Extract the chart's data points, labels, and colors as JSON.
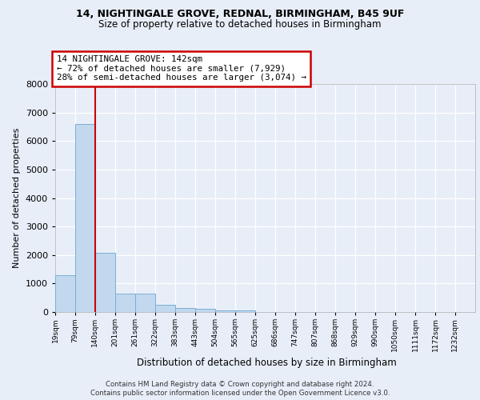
{
  "title1": "14, NIGHTINGALE GROVE, REDNAL, BIRMINGHAM, B45 9UF",
  "title2": "Size of property relative to detached houses in Birmingham",
  "xlabel": "Distribution of detached houses by size in Birmingham",
  "ylabel": "Number of detached properties",
  "footnote1": "Contains HM Land Registry data © Crown copyright and database right 2024.",
  "footnote2": "Contains public sector information licensed under the Open Government Licence v3.0.",
  "bin_labels": [
    "19sqm",
    "79sqm",
    "140sqm",
    "201sqm",
    "261sqm",
    "322sqm",
    "383sqm",
    "443sqm",
    "504sqm",
    "565sqm",
    "625sqm",
    "686sqm",
    "747sqm",
    "807sqm",
    "868sqm",
    "929sqm",
    "990sqm",
    "1050sqm",
    "1111sqm",
    "1172sqm",
    "1232sqm"
  ],
  "bar_heights": [
    1300,
    6600,
    2080,
    650,
    650,
    250,
    130,
    100,
    60,
    60,
    0,
    0,
    0,
    0,
    0,
    0,
    0,
    0,
    0,
    0,
    0
  ],
  "bar_color": "#c2d8ee",
  "bar_edge_color": "#7aafd4",
  "subject_line_x": 140,
  "subject_line_color": "#cc0000",
  "annotation_line1": "14 NIGHTINGALE GROVE: 142sqm",
  "annotation_line2": "← 72% of detached houses are smaller (7,929)",
  "annotation_line3": "28% of semi-detached houses are larger (3,074) →",
  "annotation_box_edgecolor": "#cc0000",
  "ylim": [
    0,
    8000
  ],
  "yticks": [
    0,
    1000,
    2000,
    3000,
    4000,
    5000,
    6000,
    7000,
    8000
  ],
  "bg_color": "#e8eef8",
  "grid_color": "#d0d8e8",
  "bin_left_edges": [
    19,
    79,
    140,
    201,
    261,
    322,
    383,
    443,
    504,
    565,
    625,
    686,
    747,
    807,
    868,
    929,
    990,
    1050,
    1111,
    1172,
    1232
  ],
  "bin_width": 61,
  "xlim_min": 19,
  "xlim_max": 1293
}
